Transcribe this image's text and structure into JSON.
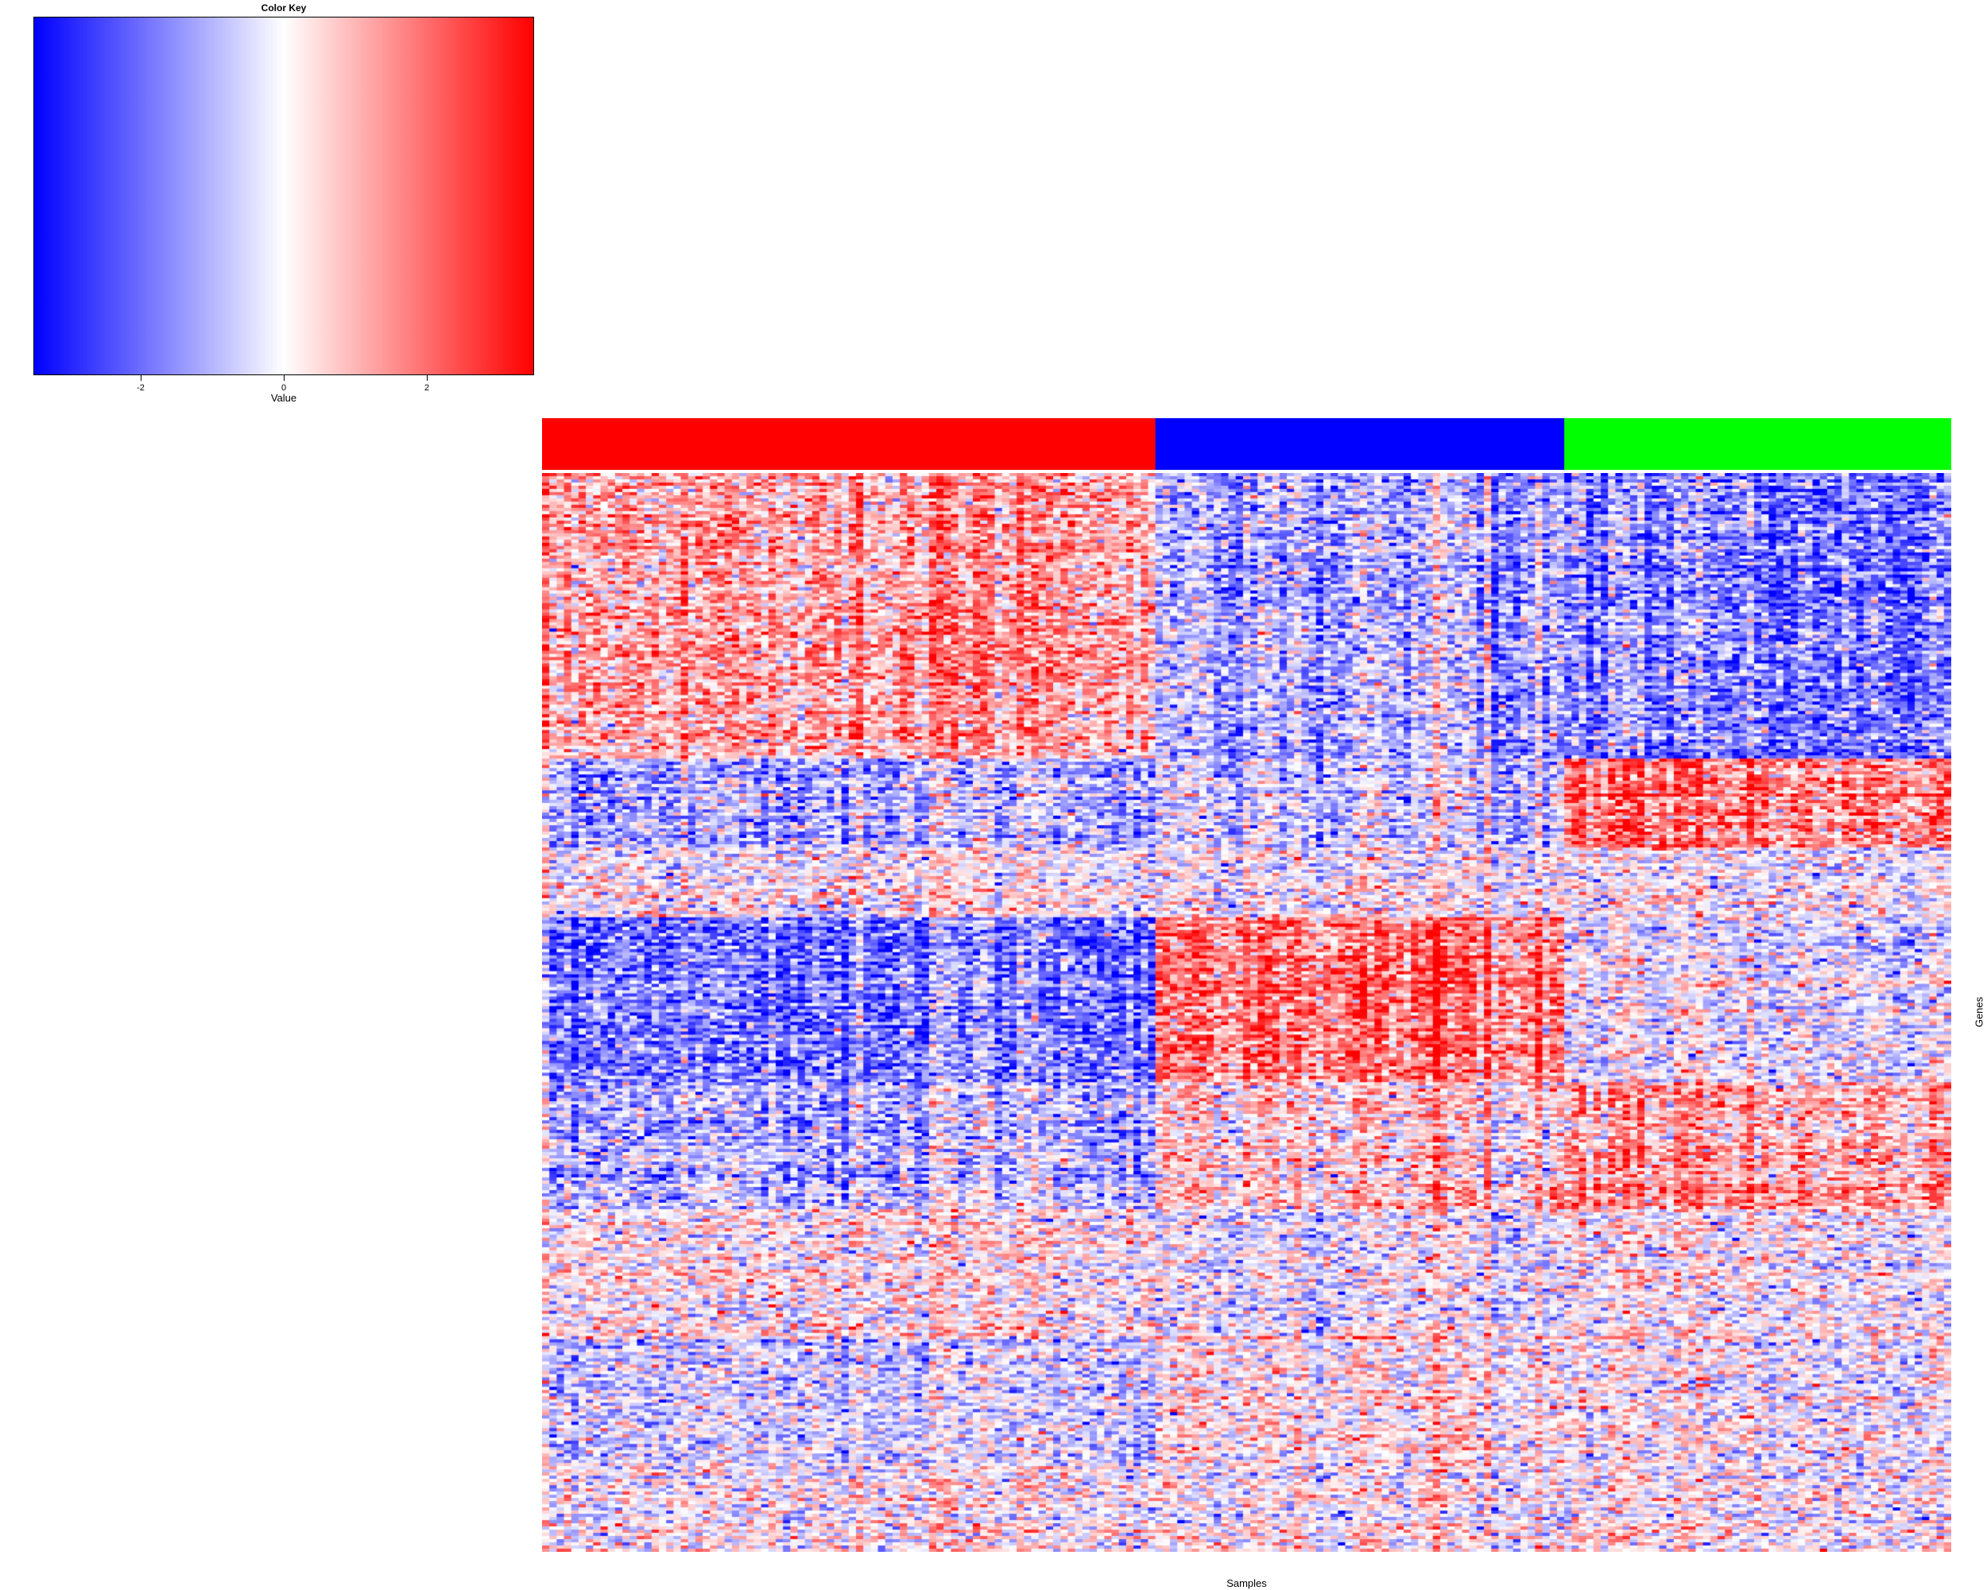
{
  "chart_data": [
    {
      "type": "bar",
      "title": "Color Key",
      "xlabel": "Value",
      "xlim": [
        -3.5,
        3.5
      ],
      "ticks": [
        -2,
        0,
        2
      ],
      "tick_labels": [
        "-2",
        "0",
        "2"
      ],
      "colors": [
        "#0000ff",
        "#ffffff",
        "#ff0000"
      ]
    },
    {
      "type": "heatmap",
      "xlabel": "Samples",
      "ylabel": "Genes",
      "value_range": [
        -3.5,
        3.5
      ],
      "color_scale": [
        "#0000ff",
        "#ffffff",
        "#ff0000"
      ],
      "column_groups": [
        {
          "color": "#ff0000",
          "n_samples": 84
        },
        {
          "color": "#0000ff",
          "n_samples": 56
        },
        {
          "color": "#00ff00",
          "n_samples": 53
        }
      ],
      "gene_blocks": [
        {
          "rows": 90,
          "means": [
            1.3,
            -1.0,
            -1.6
          ]
        },
        {
          "rows": 28,
          "means": [
            -1.0,
            -0.6,
            1.8
          ]
        },
        {
          "rows": 22,
          "means": [
            0.1,
            0.0,
            0.0
          ]
        },
        {
          "rows": 52,
          "means": [
            -1.7,
            1.9,
            -0.2
          ]
        },
        {
          "rows": 40,
          "means": [
            -0.9,
            0.6,
            1.3
          ]
        },
        {
          "rows": 40,
          "means": [
            0.2,
            -0.2,
            0.1
          ]
        },
        {
          "rows": 40,
          "means": [
            -0.5,
            0.3,
            0.0
          ]
        },
        {
          "rows": 28,
          "means": [
            0.0,
            0.0,
            0.0
          ]
        }
      ]
    }
  ]
}
